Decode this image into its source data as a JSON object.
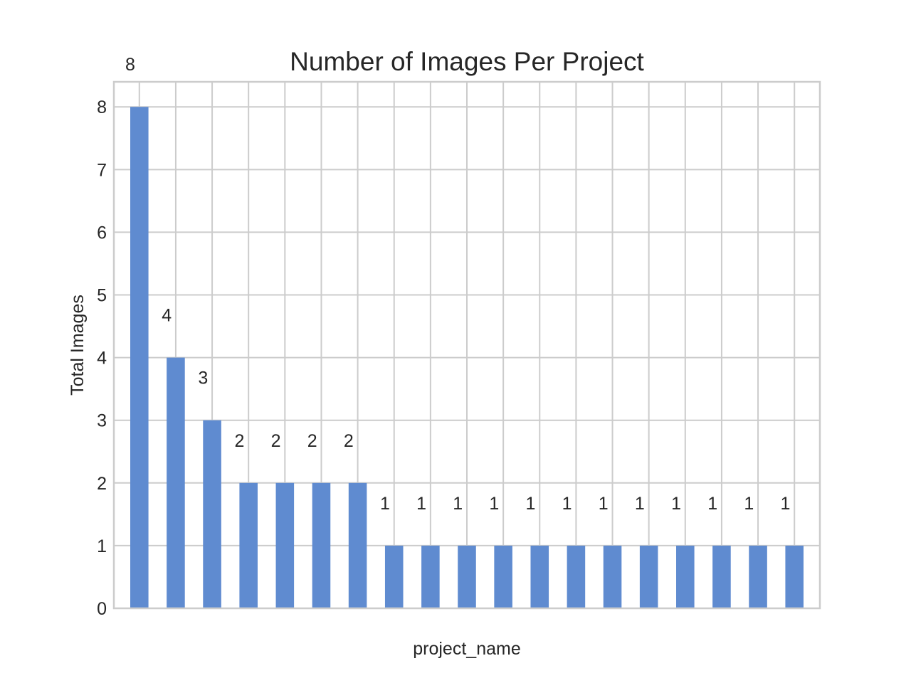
{
  "chart_data": {
    "type": "bar",
    "title": "Number of Images Per Project",
    "xlabel": "project_name",
    "ylabel": "Total Images",
    "categories": [
      "",
      "",
      "",
      "",
      "",
      "",
      "",
      "",
      "",
      "",
      "",
      "",
      "",
      "",
      "",
      "",
      "",
      "",
      ""
    ],
    "values": [
      8,
      4,
      3,
      2,
      2,
      2,
      2,
      1,
      1,
      1,
      1,
      1,
      1,
      1,
      1,
      1,
      1,
      1,
      1
    ],
    "data_labels": [
      "8",
      "4",
      "3",
      "2",
      "2",
      "2",
      "2",
      "1",
      "1",
      "1",
      "1",
      "1",
      "1",
      "1",
      "1",
      "1",
      "1",
      "1",
      "1"
    ],
    "yticks": [
      "0",
      "1",
      "2",
      "3",
      "4",
      "5",
      "6",
      "7",
      "8"
    ],
    "ylim": [
      0,
      8.4
    ],
    "grid": true,
    "bar_color": "#5f8bd0"
  }
}
